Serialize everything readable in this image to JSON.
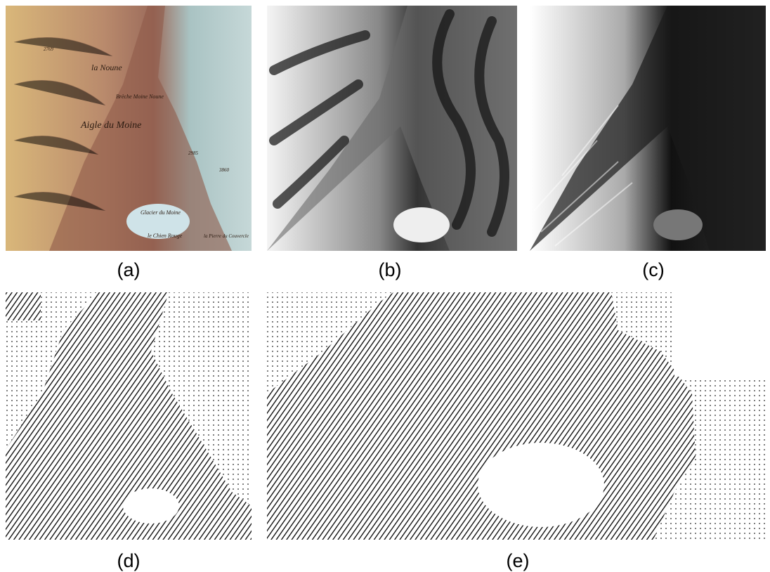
{
  "panels": [
    {
      "label": "(a)",
      "map_labels": [
        "la Noune",
        "Brèche Moine Noune",
        "Aigle du Moine",
        "Glacier du Moine",
        "le Chien Rouge",
        "la Pierre du Couvercle",
        "2769",
        "2985",
        "3860"
      ]
    },
    {
      "label": "(b)"
    },
    {
      "label": "(c)"
    },
    {
      "label": "(d)"
    },
    {
      "label": "(e)"
    }
  ]
}
